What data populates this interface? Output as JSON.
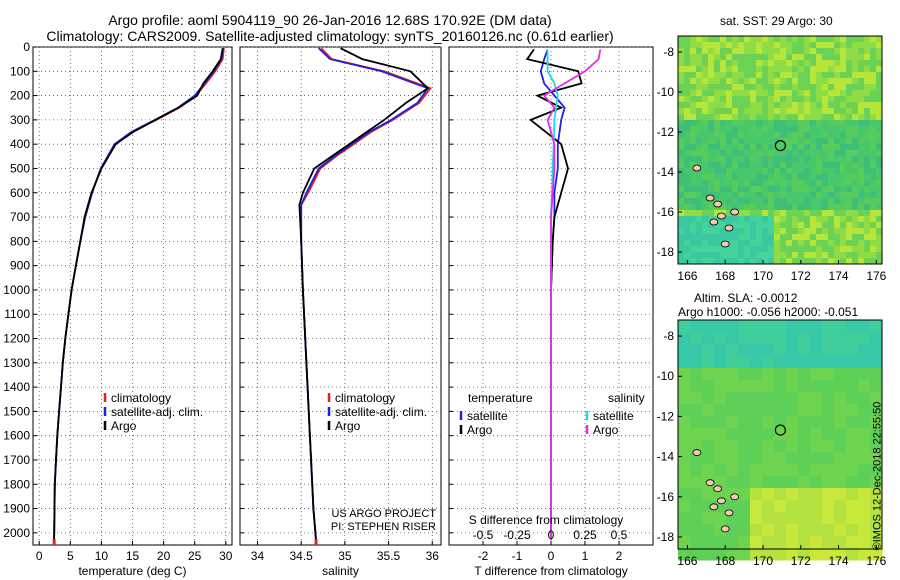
{
  "header": {
    "title_line1": "Argo profile: aoml 5904119_90 26-Jan-2016 12.68S 170.92E (DM data)",
    "title_line2": "Climatology: CARS2009. Satellite-adjusted climatology: synTS_20160126.nc (0.61d earlier)"
  },
  "colors": {
    "climatology": "#e8201a",
    "satellite_adj": "#1c22e0",
    "argo": "#000000",
    "satellite_s": "#22d7e4",
    "argo_s": "#e42ce4"
  },
  "chart_data": [
    {
      "type": "line",
      "panel": "temperature",
      "xlabel": "temperature (deg C)",
      "ylabel": "",
      "xlim": [
        -1,
        31
      ],
      "ylim": [
        2050,
        0
      ],
      "xticks": [
        0,
        5,
        10,
        15,
        20,
        25,
        30
      ],
      "yticks": [
        0,
        100,
        200,
        300,
        400,
        500,
        600,
        700,
        800,
        900,
        1000,
        1100,
        1200,
        1300,
        1400,
        1500,
        1600,
        1700,
        1800,
        1900,
        2000
      ],
      "grid": true,
      "legend": [
        "climatology",
        "satellite-adj. clim.",
        "Argo"
      ],
      "series": [
        {
          "name": "climatology",
          "color_key": "climatology",
          "x": [
            29.7,
            29.5,
            28.3,
            26.8,
            25.2,
            22.5,
            18.8,
            14.9,
            12.2,
            9.9,
            8.5,
            7.4,
            6.6,
            5.9,
            5.2,
            4.7,
            4.2,
            3.8,
            3.5,
            3.2,
            2.9,
            2.7,
            2.5,
            2.4
          ],
          "y": [
            5,
            50,
            100,
            150,
            200,
            250,
            300,
            350,
            400,
            500,
            600,
            700,
            800,
            900,
            1000,
            1100,
            1200,
            1300,
            1400,
            1500,
            1600,
            1700,
            1800,
            2030
          ]
        },
        {
          "name": "satellite-adj. clim.",
          "color_key": "satellite_adj",
          "x": [
            29.6,
            29.3,
            28.1,
            26.6,
            25.0,
            22.3,
            18.6,
            14.8,
            12.1,
            9.9,
            8.5,
            7.4,
            6.6,
            5.9,
            5.2,
            4.7,
            4.2,
            3.8,
            3.5,
            3.2,
            2.9,
            2.7,
            2.5,
            2.4
          ],
          "y": [
            5,
            50,
            100,
            150,
            200,
            250,
            300,
            350,
            400,
            500,
            600,
            700,
            800,
            900,
            1000,
            1100,
            1200,
            1300,
            1400,
            1500,
            1600,
            1700,
            1800,
            2030
          ]
        },
        {
          "name": "Argo",
          "color_key": "argo",
          "x": [
            29.5,
            29.2,
            27.9,
            26.4,
            25.4,
            22.4,
            18.7,
            15.1,
            12.3,
            10.0,
            8.4,
            7.3,
            6.6,
            5.9,
            5.2,
            4.7,
            4.2,
            3.8,
            3.5,
            3.2,
            2.9,
            2.7,
            2.5,
            2.4
          ],
          "y": [
            5,
            50,
            100,
            150,
            200,
            250,
            300,
            350,
            400,
            500,
            600,
            700,
            800,
            900,
            1000,
            1100,
            1200,
            1300,
            1400,
            1500,
            1600,
            1700,
            1800,
            2030
          ]
        }
      ]
    },
    {
      "type": "line",
      "panel": "salinity",
      "xlabel": "salinity",
      "xlim": [
        33.8,
        36.1
      ],
      "ylim": [
        2050,
        0
      ],
      "xticks": [
        34,
        34.5,
        35,
        35.5,
        36
      ],
      "grid": true,
      "legend": [
        "climatology",
        "satellite-adj. clim.",
        "Argo"
      ],
      "annotation_line1": "US ARGO PROJECT",
      "annotation_line2": "PI: STEPHEN RISER",
      "series": [
        {
          "name": "climatology",
          "color_key": "climatology",
          "x": [
            34.73,
            34.85,
            35.45,
            35.98,
            35.85,
            35.55,
            35.3,
            35.1,
            34.9,
            34.72,
            34.58,
            34.5,
            34.5,
            34.52,
            34.56,
            34.6,
            34.64,
            34.67
          ],
          "y": [
            5,
            50,
            100,
            170,
            230,
            300,
            350,
            400,
            450,
            500,
            600,
            650,
            800,
            1000,
            1300,
            1600,
            1900,
            2030
          ]
        },
        {
          "name": "satellite-adj. clim.",
          "color_key": "satellite_adj",
          "x": [
            34.7,
            34.83,
            35.42,
            35.95,
            35.83,
            35.53,
            35.28,
            35.08,
            34.88,
            34.7,
            34.56,
            34.5,
            34.5,
            34.52,
            34.56,
            34.6,
            34.64,
            34.67
          ],
          "y": [
            5,
            50,
            100,
            170,
            230,
            300,
            350,
            400,
            450,
            500,
            600,
            650,
            800,
            1000,
            1300,
            1600,
            1900,
            2030
          ]
        },
        {
          "name": "Argo",
          "color_key": "argo",
          "x": [
            34.95,
            35.2,
            35.75,
            35.95,
            35.7,
            35.45,
            35.25,
            35.05,
            34.85,
            34.65,
            34.52,
            34.48,
            34.5,
            34.52,
            34.56,
            34.6,
            34.64,
            34.67
          ],
          "y": [
            5,
            50,
            100,
            170,
            230,
            300,
            350,
            400,
            450,
            500,
            600,
            650,
            800,
            1000,
            1300,
            1600,
            1900,
            2030
          ]
        }
      ]
    },
    {
      "type": "line",
      "panel": "difference",
      "xlabel": "T difference from climatology",
      "xlabel_top": "S difference from climatology",
      "xlim": [
        -3,
        3
      ],
      "ylim": [
        2050,
        0
      ],
      "xticks": [
        -2,
        -1,
        0,
        1,
        2
      ],
      "xticks_top": [
        "-0.5",
        "-0.25",
        "0",
        "0.25",
        "0.5"
      ],
      "grid": true,
      "legend_left_title": "temperature",
      "legend_right_title": "salinity",
      "legend_left": [
        "satellite",
        "Argo"
      ],
      "legend_right": [
        "satellite",
        "Argo"
      ],
      "series": [
        {
          "name": "satellite",
          "color_key": "satellite_adj",
          "quantity": "temperature",
          "x": [
            -0.1,
            -0.2,
            -0.3,
            -0.2,
            0.1,
            0.4,
            0.3,
            0.2,
            0.2,
            0.1,
            0.1,
            0.05,
            0.0,
            0.0,
            0.0,
            0.0
          ],
          "y": [
            10,
            50,
            100,
            150,
            200,
            250,
            300,
            400,
            500,
            600,
            700,
            800,
            1000,
            1400,
            1800,
            2030
          ]
        },
        {
          "name": "Argo",
          "color_key": "argo",
          "quantity": "temperature",
          "x": [
            -0.5,
            -0.7,
            0.8,
            0.9,
            -0.4,
            0.3,
            -0.6,
            0.3,
            0.5,
            0.3,
            0.1,
            0.05,
            0.0,
            0.0,
            0.0,
            0.0
          ],
          "y": [
            10,
            50,
            100,
            150,
            200,
            250,
            300,
            400,
            500,
            600,
            700,
            800,
            1000,
            1400,
            1800,
            2030
          ]
        },
        {
          "name": "satellite",
          "color_key": "satellite_s",
          "quantity": "salinity",
          "x": [
            -0.1,
            -0.1,
            -0.1,
            0.1,
            0.2,
            0.15,
            0.1,
            0.08,
            0.05,
            0.03,
            0.0,
            0.0,
            0.0,
            0.0,
            0.0,
            0.0
          ],
          "y": [
            10,
            50,
            100,
            150,
            200,
            250,
            300,
            400,
            500,
            600,
            700,
            800,
            1000,
            1400,
            1800,
            2030
          ]
        },
        {
          "name": "Argo",
          "color_key": "argo_s",
          "quantity": "salinity",
          "x": [
            1.45,
            1.4,
            1.0,
            0.4,
            -0.2,
            0.1,
            -0.1,
            0.1,
            0.1,
            0.05,
            0.0,
            0.0,
            0.0,
            0.0,
            0.0,
            0.0
          ],
          "y": [
            10,
            50,
            100,
            150,
            200,
            250,
            300,
            400,
            500,
            600,
            700,
            800,
            1000,
            1400,
            1800,
            2030
          ]
        }
      ]
    },
    {
      "type": "heatmap",
      "panel": "sst_map",
      "title": "sat. SST: 29 Argo: 30",
      "xlim": [
        165.5,
        176.3
      ],
      "ylim": [
        -18.6,
        -7.2
      ],
      "xticks": [
        166,
        168,
        170,
        172,
        174,
        176
      ],
      "yticks": [
        -8,
        -10,
        -12,
        -14,
        -16,
        -18
      ],
      "marker": {
        "lon": 170.92,
        "lat": -12.68
      }
    },
    {
      "type": "heatmap",
      "panel": "sla_map",
      "title_line1": "Altim. SLA: -0.0012",
      "title_line2": "Argo h1000: -0.056 h2000: -0.051",
      "xlim": [
        165.5,
        176.3
      ],
      "ylim": [
        -18.6,
        -7.2
      ],
      "xticks": [
        166,
        168,
        170,
        172,
        174,
        176
      ],
      "yticks": [
        -8,
        -10,
        -12,
        -14,
        -16,
        -18
      ],
      "marker": {
        "lon": 170.92,
        "lat": -12.68
      }
    }
  ],
  "footer": {
    "credit": "©IMOS 12-Dec-2018 22:55:50"
  }
}
